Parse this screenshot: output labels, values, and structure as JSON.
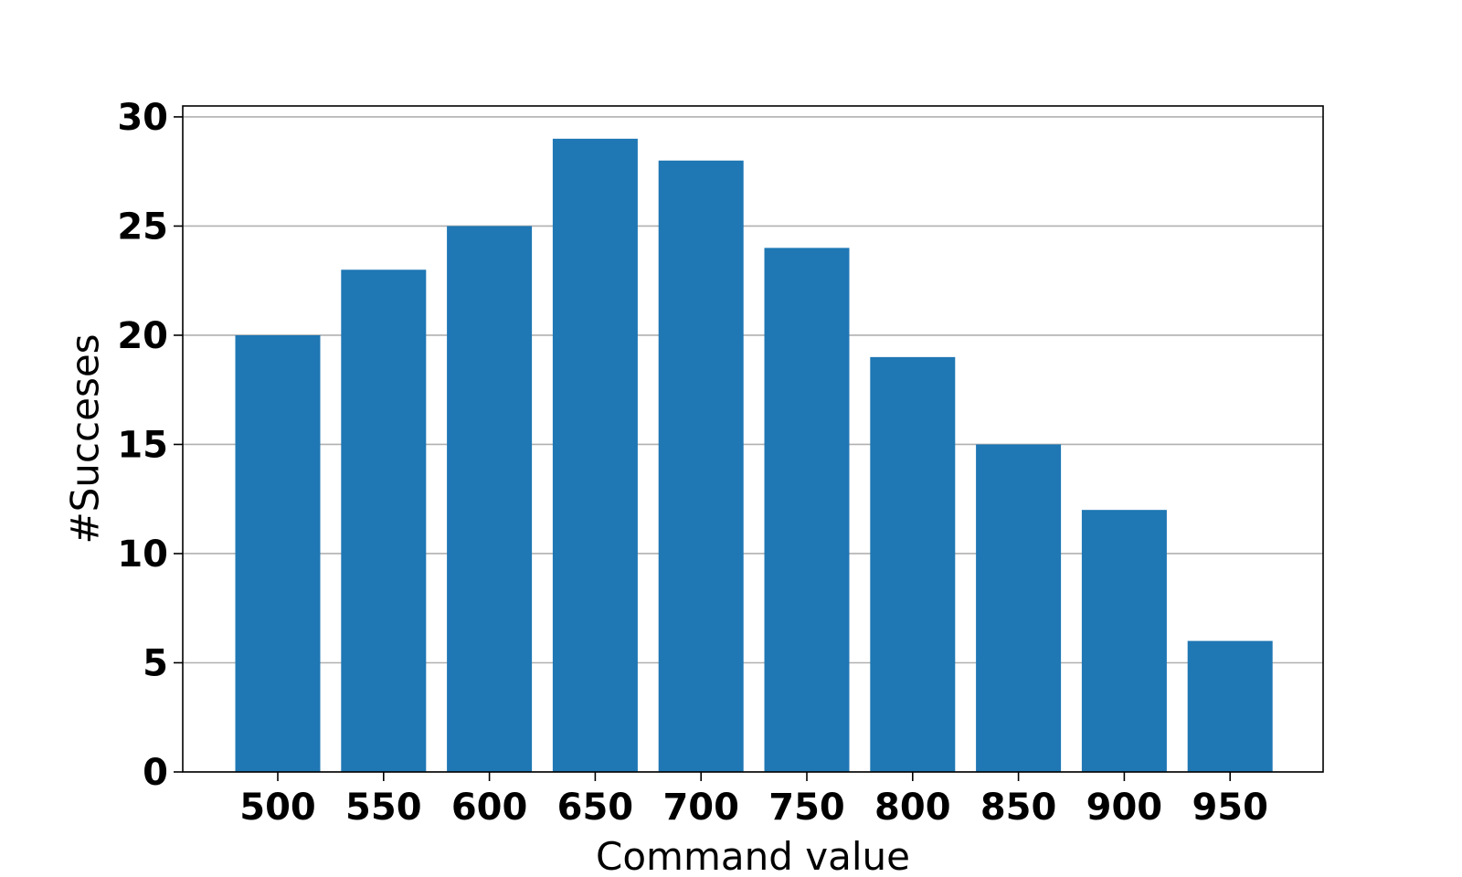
{
  "chart_data": {
    "type": "bar",
    "title": "",
    "xlabel": "Command value",
    "ylabel": "#Succeses",
    "categories": [
      "500",
      "550",
      "600",
      "650",
      "700",
      "750",
      "800",
      "850",
      "900",
      "950"
    ],
    "values": [
      20,
      23,
      25,
      29,
      28,
      24,
      19,
      15,
      12,
      6
    ],
    "ylim": [
      0,
      30.5
    ],
    "yticks": [
      "0",
      "5",
      "10",
      "15",
      "20",
      "25",
      "30"
    ],
    "grid": "horizontal",
    "legend": "none",
    "bar_color": "#1f77b4",
    "grid_color": "#b0b0b0"
  }
}
